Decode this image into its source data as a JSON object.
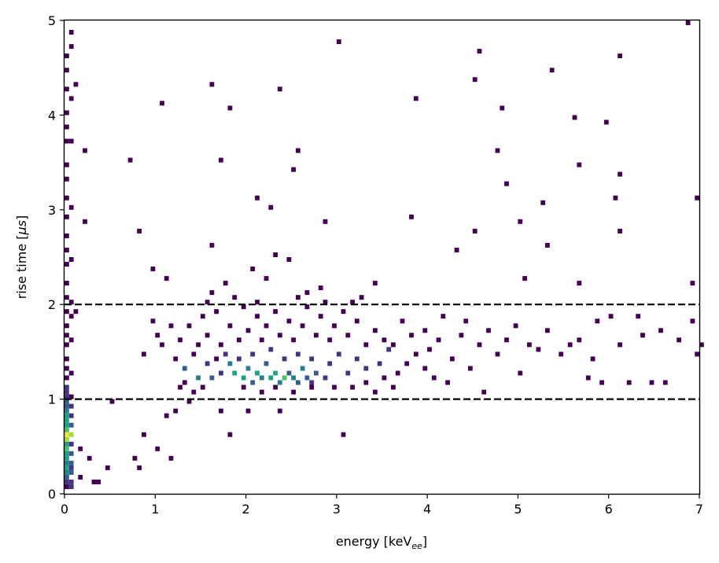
{
  "chart_data": {
    "type": "heatmap",
    "subtype": "2d-histogram",
    "title": "",
    "xlabel": {
      "text": "energy [keV",
      "sub": "ee",
      "suffix": "]"
    },
    "ylabel": {
      "text": "rise time [",
      "mu": "μ",
      "unit": "s",
      "suffix": "]"
    },
    "xlim": [
      0,
      7
    ],
    "ylim": [
      0,
      5
    ],
    "x_ticks": [
      0,
      1,
      2,
      3,
      4,
      5,
      6,
      7
    ],
    "y_ticks": [
      0,
      1,
      2,
      3,
      4,
      5
    ],
    "x_tick_labels": [
      "0",
      "1",
      "2",
      "3",
      "4",
      "5",
      "6",
      "7"
    ],
    "y_tick_labels": [
      "0",
      "1",
      "2",
      "3",
      "4",
      "5"
    ],
    "colormap": "viridis",
    "grid": false,
    "bin_width_x": 0.05,
    "bin_width_y": 0.05,
    "reference_lines": [
      {
        "orientation": "horizontal",
        "y": 1.0,
        "style": "dashed",
        "color": "#000000"
      },
      {
        "orientation": "horizontal",
        "y": 2.0,
        "style": "dashed",
        "color": "#000000"
      }
    ],
    "bins": [
      [
        0.0,
        0.05,
        1
      ],
      [
        0.0,
        0.1,
        2
      ],
      [
        0.0,
        0.15,
        3
      ],
      [
        0.0,
        0.2,
        4
      ],
      [
        0.0,
        0.25,
        5
      ],
      [
        0.0,
        0.3,
        4
      ],
      [
        0.0,
        0.35,
        5
      ],
      [
        0.0,
        0.4,
        6
      ],
      [
        0.0,
        0.45,
        7
      ],
      [
        0.0,
        0.5,
        6
      ],
      [
        0.0,
        0.55,
        8
      ],
      [
        0.0,
        0.6,
        9
      ],
      [
        0.0,
        0.65,
        7
      ],
      [
        0.0,
        0.7,
        5
      ],
      [
        0.0,
        0.75,
        6
      ],
      [
        0.0,
        0.8,
        5
      ],
      [
        0.0,
        0.85,
        4
      ],
      [
        0.0,
        0.9,
        3
      ],
      [
        0.0,
        0.95,
        3
      ],
      [
        0.0,
        1.0,
        2
      ],
      [
        0.0,
        1.05,
        2
      ],
      [
        0.0,
        1.1,
        2
      ],
      [
        0.05,
        0.05,
        2
      ],
      [
        0.05,
        0.1,
        2
      ],
      [
        0.05,
        0.2,
        3
      ],
      [
        0.05,
        0.25,
        2
      ],
      [
        0.05,
        0.3,
        3
      ],
      [
        0.05,
        0.4,
        3
      ],
      [
        0.05,
        0.5,
        2
      ],
      [
        0.05,
        0.6,
        8
      ],
      [
        0.05,
        0.7,
        3
      ],
      [
        0.05,
        0.8,
        2
      ],
      [
        0.05,
        0.9,
        2
      ],
      [
        0.05,
        1.0,
        1
      ],
      [
        0.0,
        1.2,
        1
      ],
      [
        0.0,
        1.3,
        1
      ],
      [
        0.0,
        1.4,
        1
      ],
      [
        0.0,
        1.55,
        1
      ],
      [
        0.0,
        1.65,
        1
      ],
      [
        0.0,
        1.75,
        1
      ],
      [
        0.0,
        1.9,
        1
      ],
      [
        0.0,
        2.05,
        1
      ],
      [
        0.0,
        2.2,
        1
      ],
      [
        0.0,
        2.4,
        1
      ],
      [
        0.0,
        2.55,
        1
      ],
      [
        0.0,
        2.7,
        1
      ],
      [
        0.0,
        2.9,
        1
      ],
      [
        0.0,
        3.1,
        1
      ],
      [
        0.0,
        3.3,
        1
      ],
      [
        0.0,
        3.45,
        1
      ],
      [
        0.0,
        3.7,
        1
      ],
      [
        0.0,
        3.85,
        1
      ],
      [
        0.0,
        4.0,
        1
      ],
      [
        0.0,
        4.25,
        1
      ],
      [
        0.0,
        4.45,
        1
      ],
      [
        0.0,
        4.6,
        1
      ],
      [
        0.05,
        1.25,
        1
      ],
      [
        0.05,
        1.6,
        1
      ],
      [
        0.05,
        1.85,
        1
      ],
      [
        0.05,
        2.0,
        1
      ],
      [
        0.05,
        2.45,
        1
      ],
      [
        0.05,
        3.0,
        1
      ],
      [
        0.05,
        3.7,
        1
      ],
      [
        0.05,
        4.15,
        1
      ],
      [
        0.05,
        4.7,
        1
      ],
      [
        0.05,
        4.85,
        1
      ],
      [
        0.1,
        4.3,
        1
      ],
      [
        0.1,
        1.9,
        1
      ],
      [
        0.15,
        0.15,
        1
      ],
      [
        0.15,
        0.45,
        1
      ],
      [
        0.2,
        3.6,
        1
      ],
      [
        0.2,
        2.85,
        1
      ],
      [
        0.25,
        0.35,
        1
      ],
      [
        0.3,
        0.1,
        1
      ],
      [
        0.35,
        0.1,
        1
      ],
      [
        0.45,
        0.25,
        1
      ],
      [
        0.5,
        0.95,
        1
      ],
      [
        0.7,
        3.5,
        1
      ],
      [
        0.75,
        0.35,
        1
      ],
      [
        0.8,
        0.25,
        1
      ],
      [
        0.8,
        2.75,
        1
      ],
      [
        0.85,
        0.6,
        1
      ],
      [
        0.85,
        1.45,
        1
      ],
      [
        0.95,
        2.35,
        1
      ],
      [
        1.0,
        0.45,
        1
      ],
      [
        1.0,
        1.65,
        1
      ],
      [
        1.05,
        4.1,
        1
      ],
      [
        1.1,
        0.8,
        1
      ],
      [
        1.15,
        0.35,
        1
      ],
      [
        1.1,
        2.25,
        1
      ],
      [
        1.6,
        4.3,
        1
      ],
      [
        1.7,
        3.5,
        1
      ],
      [
        1.6,
        2.6,
        1
      ],
      [
        1.8,
        4.05,
        1
      ],
      [
        2.1,
        3.1,
        1
      ],
      [
        2.25,
        3.0,
        1
      ],
      [
        2.35,
        4.25,
        1
      ],
      [
        2.5,
        3.4,
        1
      ],
      [
        2.55,
        3.6,
        1
      ],
      [
        2.85,
        2.85,
        1
      ],
      [
        3.0,
        4.75,
        1
      ],
      [
        3.05,
        0.6,
        1
      ],
      [
        3.8,
        2.9,
        1
      ],
      [
        3.85,
        4.15,
        1
      ],
      [
        4.3,
        2.55,
        1
      ],
      [
        4.5,
        2.75,
        1
      ],
      [
        4.5,
        4.35,
        1
      ],
      [
        4.55,
        4.65,
        1
      ],
      [
        4.75,
        3.6,
        1
      ],
      [
        4.8,
        4.05,
        1
      ],
      [
        4.85,
        3.25,
        1
      ],
      [
        5.0,
        2.85,
        1
      ],
      [
        5.05,
        2.25,
        1
      ],
      [
        5.25,
        3.05,
        1
      ],
      [
        5.3,
        2.6,
        1
      ],
      [
        5.35,
        4.45,
        1
      ],
      [
        5.6,
        3.95,
        1
      ],
      [
        5.65,
        3.45,
        1
      ],
      [
        5.65,
        2.2,
        1
      ],
      [
        5.95,
        3.9,
        1
      ],
      [
        6.05,
        3.1,
        1
      ],
      [
        6.1,
        3.35,
        1
      ],
      [
        6.1,
        2.75,
        1
      ],
      [
        6.1,
        4.6,
        1
      ],
      [
        6.85,
        4.95,
        1
      ],
      [
        6.9,
        2.2,
        1
      ],
      [
        6.95,
        3.1,
        1
      ],
      [
        7.0,
        1.55,
        1
      ],
      [
        6.95,
        1.45,
        1
      ],
      [
        6.9,
        1.8,
        1
      ],
      [
        6.6,
        1.15,
        1
      ],
      [
        6.45,
        1.15,
        1
      ],
      [
        6.2,
        1.15,
        1
      ],
      [
        6.35,
        1.65,
        1
      ],
      [
        6.0,
        1.85,
        1
      ],
      [
        5.9,
        1.15,
        1
      ],
      [
        5.8,
        1.4,
        1
      ],
      [
        5.75,
        1.2,
        1
      ],
      [
        5.55,
        1.55,
        1
      ],
      [
        5.2,
        1.5,
        1
      ],
      [
        5.0,
        1.25,
        1
      ],
      [
        4.6,
        1.05,
        1
      ],
      [
        4.45,
        1.3,
        1
      ],
      [
        1.2,
        0.85,
        1
      ],
      [
        1.35,
        0.95,
        1
      ],
      [
        1.7,
        0.85,
        1
      ],
      [
        1.8,
        0.6,
        1
      ],
      [
        2.0,
        0.85,
        1
      ],
      [
        2.35,
        0.85,
        1
      ],
      [
        1.25,
        1.1,
        1
      ],
      [
        1.4,
        1.05,
        1
      ],
      [
        1.6,
        2.1,
        1
      ],
      [
        1.75,
        2.2,
        1
      ],
      [
        2.05,
        2.35,
        1
      ],
      [
        2.2,
        2.25,
        1
      ],
      [
        2.3,
        2.5,
        1
      ],
      [
        2.45,
        2.45,
        1
      ],
      [
        2.65,
        2.1,
        1
      ],
      [
        2.8,
        2.15,
        1
      ],
      [
        3.15,
        2.0,
        1
      ],
      [
        3.4,
        2.2,
        1
      ],
      [
        1.3,
        1.3,
        3
      ],
      [
        1.45,
        1.2,
        4
      ],
      [
        1.55,
        1.35,
        2
      ],
      [
        1.6,
        1.2,
        3
      ],
      [
        1.7,
        1.25,
        2
      ],
      [
        1.8,
        1.35,
        4
      ],
      [
        1.85,
        1.25,
        6
      ],
      [
        1.95,
        1.2,
        5
      ],
      [
        2.0,
        1.3,
        4
      ],
      [
        2.05,
        1.15,
        3
      ],
      [
        2.1,
        1.25,
        5
      ],
      [
        2.15,
        1.2,
        4
      ],
      [
        2.2,
        1.35,
        3
      ],
      [
        2.25,
        1.2,
        6
      ],
      [
        2.3,
        1.25,
        5
      ],
      [
        2.35,
        1.15,
        4
      ],
      [
        2.4,
        1.2,
        7
      ],
      [
        2.45,
        1.25,
        3
      ],
      [
        2.5,
        1.2,
        4
      ],
      [
        2.55,
        1.15,
        3
      ],
      [
        2.6,
        1.3,
        4
      ],
      [
        2.65,
        1.2,
        3
      ],
      [
        2.7,
        1.15,
        2
      ],
      [
        2.75,
        1.25,
        3
      ],
      [
        2.85,
        1.2,
        2
      ],
      [
        1.75,
        1.45,
        2
      ],
      [
        1.9,
        1.4,
        2
      ],
      [
        2.05,
        1.45,
        2
      ],
      [
        2.25,
        1.5,
        2
      ],
      [
        2.4,
        1.4,
        2
      ],
      [
        2.55,
        1.45,
        2
      ],
      [
        2.7,
        1.4,
        2
      ],
      [
        2.9,
        1.35,
        2
      ],
      [
        3.0,
        1.45,
        2
      ],
      [
        3.1,
        1.25,
        2
      ],
      [
        3.2,
        1.4,
        2
      ],
      [
        3.3,
        1.3,
        2
      ],
      [
        3.45,
        1.35,
        2
      ],
      [
        3.55,
        1.5,
        2
      ],
      [
        1.25,
        1.6,
        1
      ],
      [
        1.35,
        1.75,
        1
      ],
      [
        1.45,
        1.55,
        1
      ],
      [
        1.5,
        1.85,
        1
      ],
      [
        1.55,
        1.65,
        1
      ],
      [
        1.65,
        1.9,
        1
      ],
      [
        1.7,
        1.55,
        1
      ],
      [
        1.8,
        1.75,
        1
      ],
      [
        1.9,
        1.6,
        1
      ],
      [
        1.95,
        1.95,
        1
      ],
      [
        2.0,
        1.7,
        1
      ],
      [
        2.1,
        1.85,
        1
      ],
      [
        2.15,
        1.6,
        1
      ],
      [
        2.2,
        1.75,
        1
      ],
      [
        2.3,
        1.9,
        1
      ],
      [
        2.35,
        1.65,
        1
      ],
      [
        2.45,
        1.8,
        1
      ],
      [
        2.5,
        1.6,
        1
      ],
      [
        2.6,
        1.75,
        1
      ],
      [
        2.65,
        1.95,
        1
      ],
      [
        2.75,
        1.65,
        1
      ],
      [
        2.8,
        1.85,
        1
      ],
      [
        2.9,
        1.6,
        1
      ],
      [
        2.95,
        1.75,
        1
      ],
      [
        3.05,
        1.9,
        1
      ],
      [
        3.1,
        1.65,
        1
      ],
      [
        3.2,
        1.8,
        1
      ],
      [
        3.3,
        1.55,
        1
      ],
      [
        3.4,
        1.7,
        1
      ],
      [
        3.5,
        1.6,
        1
      ],
      [
        3.6,
        1.55,
        1
      ],
      [
        3.7,
        1.8,
        1
      ],
      [
        3.8,
        1.65,
        1
      ],
      [
        3.85,
        1.45,
        1
      ],
      [
        3.95,
        1.7,
        1
      ],
      [
        4.0,
        1.5,
        1
      ],
      [
        4.1,
        1.6,
        1
      ],
      [
        4.15,
        1.85,
        1
      ],
      [
        4.25,
        1.4,
        1
      ],
      [
        4.35,
        1.65,
        1
      ],
      [
        4.4,
        1.8,
        1
      ],
      [
        4.55,
        1.55,
        1
      ],
      [
        4.65,
        1.7,
        1
      ],
      [
        4.75,
        1.45,
        1
      ],
      [
        4.85,
        1.6,
        1
      ],
      [
        4.95,
        1.75,
        1
      ],
      [
        5.1,
        1.55,
        1
      ],
      [
        5.3,
        1.7,
        1
      ],
      [
        5.45,
        1.45,
        1
      ],
      [
        5.65,
        1.6,
        1
      ],
      [
        5.85,
        1.8,
        1
      ],
      [
        6.1,
        1.55,
        1
      ],
      [
        6.3,
        1.85,
        1
      ],
      [
        6.55,
        1.7,
        1
      ],
      [
        6.75,
        1.6,
        1
      ],
      [
        1.2,
        1.4,
        1
      ],
      [
        1.3,
        1.15,
        1
      ],
      [
        1.4,
        1.45,
        1
      ],
      [
        1.5,
        1.1,
        1
      ],
      [
        1.65,
        1.4,
        1
      ],
      [
        1.95,
        1.1,
        1
      ],
      [
        2.15,
        1.05,
        1
      ],
      [
        2.3,
        1.1,
        1
      ],
      [
        2.5,
        1.05,
        1
      ],
      [
        2.7,
        1.1,
        1
      ],
      [
        2.95,
        1.1,
        1
      ],
      [
        3.15,
        1.1,
        1
      ],
      [
        3.3,
        1.15,
        1
      ],
      [
        3.5,
        1.2,
        1
      ],
      [
        3.65,
        1.25,
        1
      ],
      [
        3.75,
        1.35,
        1
      ],
      [
        3.95,
        1.3,
        1
      ],
      [
        4.05,
        1.2,
        1
      ],
      [
        4.2,
        1.15,
        1
      ],
      [
        3.4,
        1.05,
        1
      ],
      [
        3.6,
        1.1,
        1
      ],
      [
        1.55,
        2.0,
        1
      ],
      [
        1.85,
        2.05,
        1
      ],
      [
        2.1,
        2.0,
        1
      ],
      [
        2.55,
        2.05,
        1
      ],
      [
        2.85,
        2.0,
        1
      ],
      [
        3.25,
        2.05,
        1
      ],
      [
        0.95,
        1.8,
        1
      ],
      [
        1.05,
        1.55,
        1
      ],
      [
        1.15,
        1.75,
        1
      ]
    ]
  }
}
